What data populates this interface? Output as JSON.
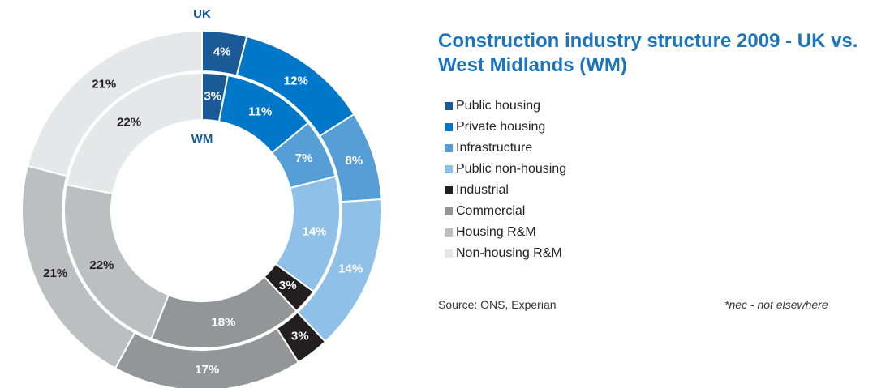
{
  "chart_data": {
    "type": "donut",
    "title": "Construction industry structure 2009 - UK vs. West Midlands (WM)",
    "categories": [
      "Public housing",
      "Private housing",
      "Infrastructure",
      "Public non-housing",
      "Industrial",
      "Commercial",
      "Housing R&M",
      "Non-housing R&M"
    ],
    "colors": [
      "#1b5a96",
      "#0077c8",
      "#559fd6",
      "#8fc1e8",
      "#231f20",
      "#939598",
      "#bcbec0",
      "#e6e7e8"
    ],
    "series": [
      {
        "name": "UK",
        "values": [
          4,
          12,
          8,
          14,
          3,
          17,
          21,
          21
        ],
        "value_labels": [
          "4%",
          "12%",
          "8%",
          "14%",
          "3%",
          "17%",
          "21%",
          "21%"
        ]
      },
      {
        "name": "WM",
        "values": [
          3,
          11,
          7,
          14,
          3,
          18,
          22,
          22
        ],
        "value_labels": [
          "3%",
          "11%",
          "7%",
          "14%",
          "3%",
          "18%",
          "22%",
          "22%"
        ]
      }
    ],
    "source": "Source: ONS, Experian",
    "note": "*nec - not elsewhere"
  }
}
